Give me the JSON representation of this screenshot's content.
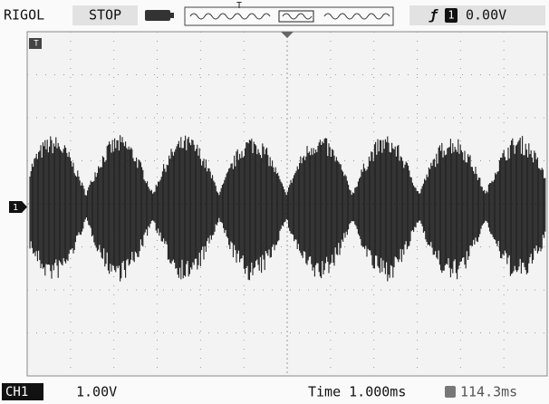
{
  "header": {
    "brand": "RIGOL",
    "status": "STOP",
    "timebase_marker": "T",
    "trigger_source": "1",
    "trigger_level": "0.00V"
  },
  "markers": {
    "trigger_position": "T",
    "channel": "1"
  },
  "footer": {
    "channel": "CH1",
    "scale": "1.00V",
    "time": "Time 1.000ms",
    "offset": "114.3ms"
  }
}
